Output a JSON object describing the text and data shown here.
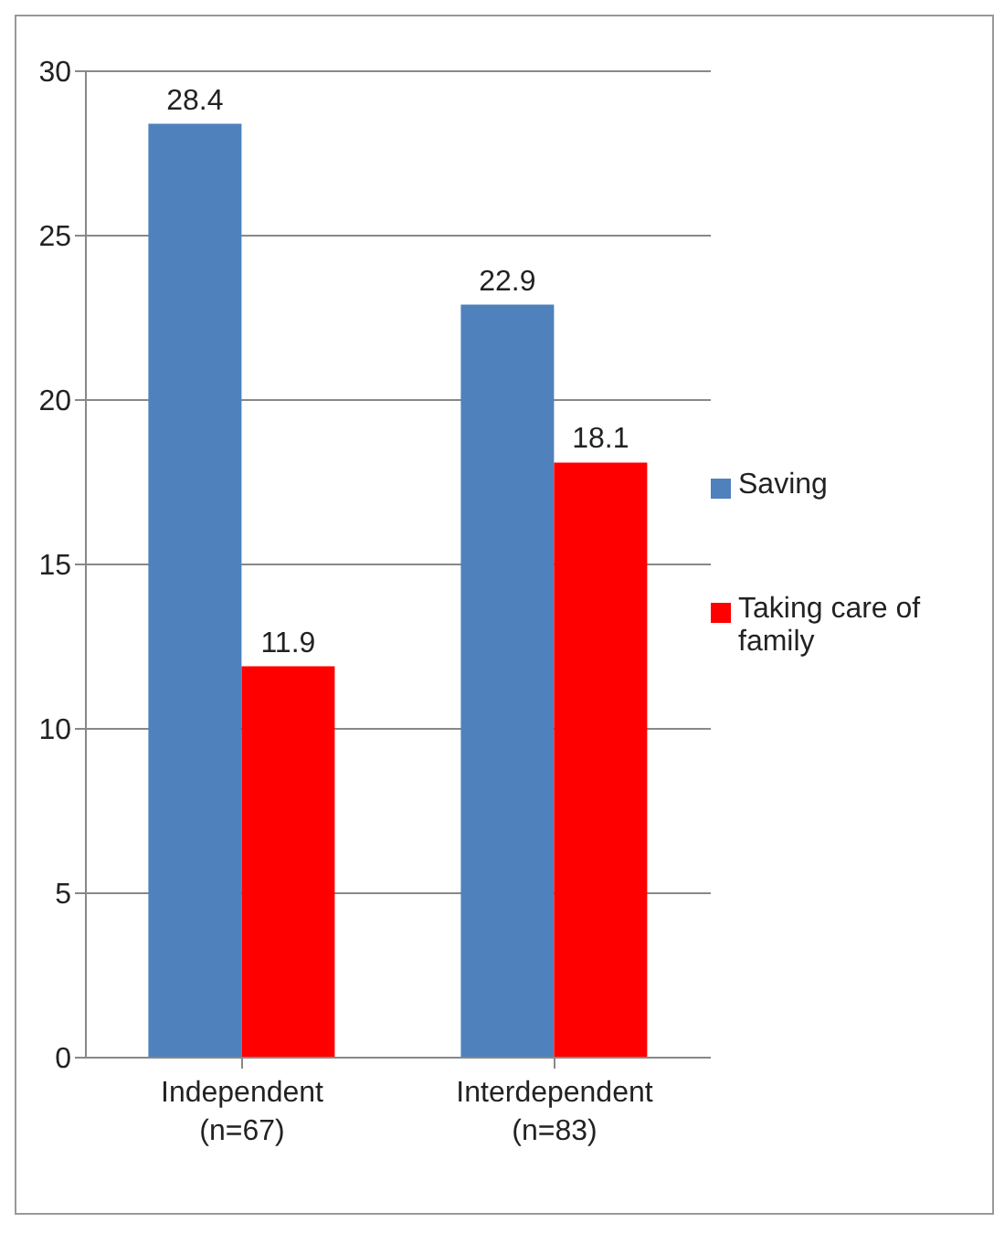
{
  "chart_data": {
    "type": "bar",
    "categories": [
      "Independent\n(n=67)",
      "Interdependent\n(n=83)"
    ],
    "series": [
      {
        "name": "Saving",
        "color": "#4f81bd",
        "values": [
          28.4,
          22.9
        ]
      },
      {
        "name": "Taking care of family",
        "color": "#ff0000",
        "values": [
          11.9,
          18.1
        ]
      }
    ],
    "ylim": [
      0,
      30
    ],
    "yticks": [
      0,
      5,
      10,
      15,
      20,
      25,
      30
    ],
    "grid": "y",
    "legend": "right",
    "data_labels": true
  }
}
